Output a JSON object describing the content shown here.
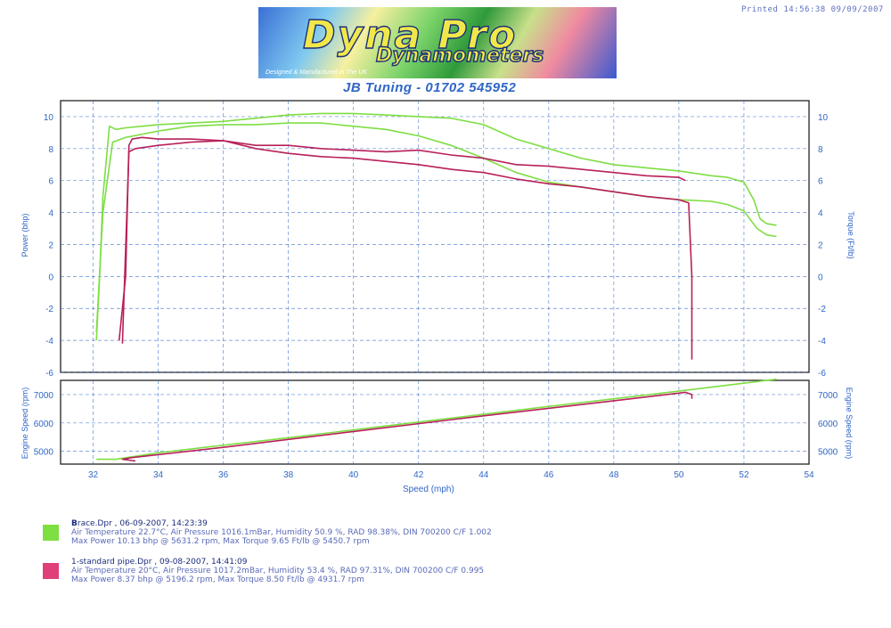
{
  "printed": "Printed 14:56:38 09/09/2007",
  "logo": {
    "word1": "Dyna Pro",
    "word2": "Dynamometers",
    "tagline": "Designed & Manufactured in The UK"
  },
  "header_title": "JB Tuning - 01702 545952",
  "colors": {
    "accent": "#2f66c7",
    "series1": "#7ede42",
    "series2": "#b8205a",
    "grid": "#2f66c7"
  },
  "chart_data": [
    {
      "type": "line",
      "title": "JB Tuning - 01702 545952",
      "xlabel": "Speed (mph)",
      "ylabel_left": "Power (bhp)",
      "ylabel_right": "Torque (Ft/lb)",
      "xlim": [
        31,
        54
      ],
      "ylim": [
        -6,
        11
      ],
      "yticks": [
        -6,
        -4,
        -2,
        0,
        2,
        4,
        6,
        8,
        10
      ],
      "grid": true,
      "series": [
        {
          "name": "race.Dpr - Power",
          "color": "#7ede42",
          "x": [
            32.1,
            32.2,
            32.3,
            32.5,
            32.7,
            33.0,
            33.5,
            34,
            35,
            36,
            37,
            38,
            39,
            40,
            41,
            42,
            43,
            44,
            45,
            46,
            47,
            48,
            49,
            50,
            51,
            51.5,
            52,
            52.3,
            52.5,
            52.7,
            53.0
          ],
          "y": [
            -4,
            0,
            5,
            9.4,
            9.2,
            9.3,
            9.4,
            9.5,
            9.6,
            9.7,
            9.9,
            10.1,
            10.2,
            10.2,
            10.1,
            10.0,
            9.9,
            9.5,
            8.6,
            8.0,
            7.4,
            7.0,
            6.8,
            6.6,
            6.3,
            6.2,
            5.9,
            4.8,
            3.6,
            3.3,
            3.2
          ]
        },
        {
          "name": "race.Dpr - Torque",
          "color": "#7ede42",
          "x": [
            32.1,
            32.3,
            32.6,
            33.0,
            34,
            35,
            36,
            37,
            38,
            39,
            40,
            41,
            42,
            43,
            44,
            45,
            46,
            47,
            48,
            49,
            50,
            51,
            51.5,
            52,
            52.4,
            52.7,
            53.0
          ],
          "y": [
            -3.5,
            4,
            8.4,
            8.7,
            9.1,
            9.4,
            9.5,
            9.5,
            9.6,
            9.6,
            9.4,
            9.2,
            8.8,
            8.2,
            7.4,
            6.5,
            5.9,
            5.6,
            5.3,
            5.0,
            4.8,
            4.7,
            4.5,
            4.1,
            3.0,
            2.6,
            2.5
          ]
        },
        {
          "name": "1-standard pipe.Dpr - Power",
          "color": "#b8205a",
          "x": [
            32.8,
            33.0,
            33.1,
            33.2,
            33.5,
            34,
            35,
            36,
            37,
            38,
            39,
            40,
            41,
            42,
            43,
            44,
            45,
            46,
            47,
            48,
            49,
            50,
            50.2
          ],
          "y": [
            -4.0,
            0,
            8.2,
            8.6,
            8.7,
            8.6,
            8.6,
            8.5,
            8.2,
            8.2,
            8.0,
            7.9,
            7.8,
            7.9,
            7.6,
            7.4,
            7.0,
            6.9,
            6.7,
            6.5,
            6.3,
            6.2,
            6.0
          ]
        },
        {
          "name": "1-standard pipe.Dpr - Torque",
          "color": "#b8205a",
          "x": [
            32.9,
            33.1,
            33.3,
            34,
            35,
            36,
            37,
            38,
            39,
            40,
            41,
            42,
            43,
            44,
            45,
            46,
            47,
            48,
            49,
            50,
            50.3,
            50.4,
            50.4
          ],
          "y": [
            -4.2,
            7.8,
            8.0,
            8.2,
            8.4,
            8.5,
            8.0,
            7.7,
            7.5,
            7.4,
            7.2,
            7.0,
            6.7,
            6.5,
            6.1,
            5.8,
            5.6,
            5.3,
            5.0,
            4.8,
            4.6,
            0,
            -5.2
          ]
        }
      ]
    },
    {
      "type": "line",
      "xlabel": "Speed (mph)",
      "ylabel_left": "Engine Speed (rpm)",
      "ylabel_right": "Engine Speed (rpm)",
      "xlim": [
        31,
        54
      ],
      "ylim": [
        4550,
        7500
      ],
      "yticks": [
        5000,
        6000,
        7000
      ],
      "xticks": [
        32,
        34,
        36,
        38,
        40,
        42,
        44,
        46,
        48,
        50,
        52,
        54
      ],
      "grid": true,
      "series": [
        {
          "name": "race.Dpr - Engine Speed",
          "color": "#7ede42",
          "x": [
            32.1,
            32.7,
            34,
            38,
            42,
            46,
            50,
            53
          ],
          "y": [
            4720,
            4720,
            4950,
            5480,
            6030,
            6580,
            7120,
            7540
          ]
        },
        {
          "name": "1-standard pipe.Dpr - Engine Speed",
          "color": "#b8205a",
          "x": [
            33.3,
            32.9,
            33.2,
            36,
            40,
            44,
            48,
            50.2,
            50.4,
            50.4
          ],
          "y": [
            4660,
            4720,
            4780,
            5140,
            5700,
            6250,
            6780,
            7080,
            7000,
            6850
          ]
        }
      ]
    }
  ],
  "legend": [
    {
      "line1": "race.Dpr ,  06-09-2007,  14:23:39",
      "line2": "Air Temperature 22.7°C,  Air Pressure 1016.1mBar,  Humidity 50.9 %,  RAD 98.38%,  DIN 700200  C/F 1.002",
      "line3": "Max Power 10.13 bhp @ 5631.2 rpm,  Max Torque 9.65 Ft/lb @ 5450.7 rpm",
      "color": "#7ede42",
      "prefix": "B"
    },
    {
      "line1": "1-standard pipe.Dpr ,  09-08-2007,  14:41:09",
      "line2": "Air Temperature 20°C,  Air Pressure 1017.2mBar,  Humidity 53.4 %,  RAD 97.31%,  DIN 700200  C/F 0.995",
      "line3": "Max Power 8.37 bhp @ 5196.2 rpm,  Max Torque 8.50 Ft/lb @ 4931.7 rpm",
      "color": "#e0407a",
      "prefix": ""
    }
  ]
}
